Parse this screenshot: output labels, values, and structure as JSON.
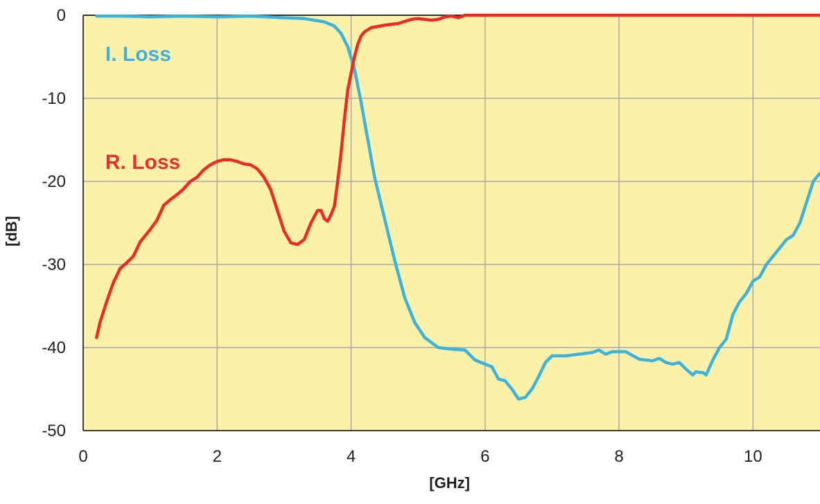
{
  "chart_data": {
    "type": "line",
    "title": "",
    "xlabel": "[GHz]",
    "ylabel": "[dB]",
    "xlim": [
      0,
      11
    ],
    "ylim": [
      -50,
      0
    ],
    "x_ticks": [
      0,
      2,
      4,
      6,
      8,
      10
    ],
    "y_ticks": [
      0,
      -10,
      -20,
      -30,
      -40,
      -50
    ],
    "x_tick_labels": [
      "0",
      "2",
      "4",
      "6",
      "8",
      "10"
    ],
    "y_tick_labels": [
      "0",
      "-10",
      "-20",
      "-30",
      "-40",
      "-50"
    ],
    "grid": true,
    "legend": "none",
    "colors": {
      "plot_background": "#FBF1A9",
      "grid": "#a8a8a8",
      "axis": "#000000"
    },
    "series": [
      {
        "name": "I. Loss",
        "color": "#3BB3DD",
        "label_color": "#45AEDC",
        "x": [
          0.2,
          0.6,
          1.0,
          1.5,
          2.0,
          2.5,
          3.0,
          3.3,
          3.6,
          3.75,
          3.85,
          3.95,
          4.05,
          4.15,
          4.25,
          4.35,
          4.5,
          4.65,
          4.8,
          4.95,
          5.1,
          5.3,
          5.5,
          5.7,
          5.85,
          6.0,
          6.1,
          6.2,
          6.3,
          6.4,
          6.5,
          6.6,
          6.7,
          6.8,
          6.9,
          7.0,
          7.2,
          7.4,
          7.6,
          7.7,
          7.8,
          7.9,
          8.0,
          8.1,
          8.3,
          8.5,
          8.6,
          8.7,
          8.8,
          8.9,
          9.0,
          9.1,
          9.15,
          9.2,
          9.25,
          9.3,
          9.4,
          9.5,
          9.6,
          9.7,
          9.8,
          9.9,
          10.0,
          10.1,
          10.2,
          10.3,
          10.4,
          10.5,
          10.6,
          10.7,
          10.8,
          10.9,
          11.0
        ],
        "values": [
          -0.1,
          -0.1,
          -0.2,
          -0.1,
          -0.2,
          -0.1,
          -0.3,
          -0.4,
          -0.8,
          -1.3,
          -2.2,
          -3.8,
          -6.5,
          -10.5,
          -15.0,
          -19.5,
          -24.5,
          -29.5,
          -34.0,
          -37.0,
          -38.8,
          -40.0,
          -40.2,
          -40.3,
          -41.5,
          -42.0,
          -42.3,
          -43.8,
          -44.0,
          -45.0,
          -46.2,
          -46.0,
          -45.0,
          -43.5,
          -41.8,
          -41.0,
          -41.0,
          -40.8,
          -40.6,
          -40.3,
          -40.8,
          -40.5,
          -40.5,
          -40.5,
          -41.4,
          -41.6,
          -41.3,
          -41.8,
          -42.0,
          -41.8,
          -42.6,
          -43.3,
          -42.9,
          -43.0,
          -43.0,
          -43.3,
          -41.5,
          -40.0,
          -39.0,
          -36.0,
          -34.5,
          -33.5,
          -32.0,
          -31.5,
          -30.0,
          -29.0,
          -28.0,
          -27.0,
          -26.5,
          -25.0,
          -22.5,
          -20.0,
          -19.0
        ]
      },
      {
        "name": "R. Loss",
        "color": "#EE2A24",
        "label_color": "#E8302A",
        "x": [
          0.2,
          0.25,
          0.35,
          0.45,
          0.55,
          0.65,
          0.75,
          0.85,
          1.0,
          1.1,
          1.2,
          1.3,
          1.4,
          1.5,
          1.6,
          1.7,
          1.8,
          1.9,
          2.0,
          2.1,
          2.2,
          2.3,
          2.4,
          2.5,
          2.6,
          2.7,
          2.8,
          2.9,
          3.0,
          3.1,
          3.2,
          3.3,
          3.4,
          3.5,
          3.55,
          3.6,
          3.65,
          3.7,
          3.75,
          3.8,
          3.85,
          3.9,
          3.95,
          4.0,
          4.05,
          4.1,
          4.15,
          4.2,
          4.3,
          4.5,
          4.7,
          4.9,
          5.0,
          5.1,
          5.2,
          5.3,
          5.4,
          5.5,
          5.6,
          5.7,
          6.0,
          7.0,
          8.0,
          9.0,
          10.0,
          11.0
        ],
        "values": [
          -38.8,
          -37.0,
          -34.5,
          -32.2,
          -30.5,
          -29.8,
          -29.0,
          -27.3,
          -25.8,
          -24.7,
          -22.9,
          -22.2,
          -21.6,
          -20.9,
          -20.0,
          -19.5,
          -18.6,
          -18.0,
          -17.6,
          -17.4,
          -17.4,
          -17.6,
          -17.9,
          -18.0,
          -18.5,
          -19.5,
          -21.0,
          -23.5,
          -26.0,
          -27.4,
          -27.6,
          -27.0,
          -25.0,
          -23.5,
          -23.5,
          -24.5,
          -24.8,
          -24.0,
          -23.0,
          -20.0,
          -16.5,
          -12.5,
          -9.0,
          -7.0,
          -5.0,
          -3.5,
          -2.5,
          -2.0,
          -1.5,
          -1.2,
          -1.0,
          -0.5,
          -0.4,
          -0.5,
          -0.6,
          -0.5,
          -0.2,
          -0.1,
          -0.3,
          0.0,
          0.0,
          0.0,
          0.0,
          0.0,
          0.0,
          0.0
        ]
      }
    ]
  }
}
